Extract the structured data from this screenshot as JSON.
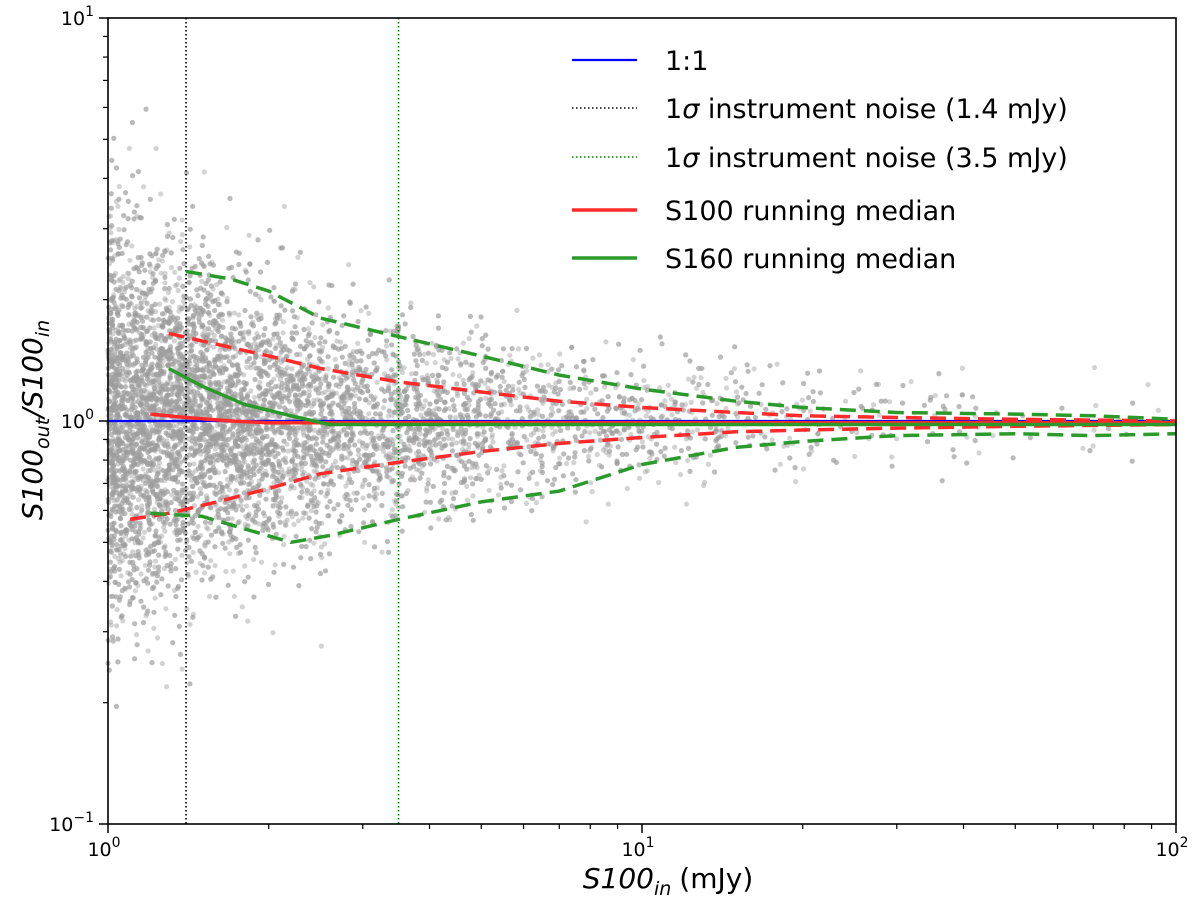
{
  "chart_data": {
    "type": "scatter",
    "x_axis": {
      "label_main": "S100",
      "label_sub": "in",
      "label_unit": "(mJy)",
      "scale": "log",
      "range": [
        1,
        100
      ],
      "tick_labels": [
        {
          "value": 1,
          "base": "10",
          "exp": "0"
        },
        {
          "value": 10,
          "base": "10",
          "exp": "1"
        },
        {
          "value": 100,
          "base": "10",
          "exp": "2"
        }
      ]
    },
    "y_axis": {
      "label_num": "S100",
      "label_num_sub": "out",
      "label_den": "S100",
      "label_den_sub": "in",
      "scale": "log",
      "range": [
        0.1,
        10
      ],
      "tick_labels": [
        {
          "value": 0.1,
          "base": "10",
          "exp": "−1"
        },
        {
          "value": 1,
          "base": "10",
          "exp": "0"
        },
        {
          "value": 10,
          "base": "10",
          "exp": "1"
        }
      ]
    },
    "scatter_color": "#9e9e9e",
    "legend": {
      "placement": "top-right",
      "entries": [
        {
          "label": "1:1",
          "color": "#0000ff",
          "style": "solid"
        },
        {
          "label_prefix": "1",
          "label_sigma": "σ",
          "label_rest": " instrument noise (1.4 mJy)",
          "color": "#000000",
          "style": "dotted"
        },
        {
          "label_prefix": "1",
          "label_sigma": "σ",
          "label_rest": " instrument noise (3.5 mJy)",
          "color": "#008000",
          "style": "dotted"
        },
        {
          "label": "S100 running median",
          "color": "#ff2a2a",
          "style": "solid"
        },
        {
          "label": "S160 running median",
          "color": "#2a9a2a",
          "style": "solid"
        }
      ]
    },
    "vlines": [
      {
        "x": 1.4,
        "color": "#000000"
      },
      {
        "x": 3.5,
        "color": "#008000"
      }
    ],
    "one_to_one": {
      "x": [
        1,
        100
      ],
      "y": [
        1,
        1
      ],
      "color": "#0000ff"
    },
    "series": [
      {
        "name": "S100 running median",
        "color": "#ff2a2a",
        "style": "solid",
        "x": [
          1.2,
          1.4,
          1.7,
          2.0,
          2.5,
          3.5,
          5,
          10,
          30,
          100
        ],
        "y": [
          1.04,
          1.02,
          1.0,
          0.99,
          0.99,
          0.99,
          0.99,
          0.99,
          0.99,
          0.99
        ]
      },
      {
        "name": "S100 upper",
        "color": "#ff2a2a",
        "style": "dashed",
        "x": [
          1.3,
          1.5,
          2.0,
          2.5,
          3.5,
          5,
          7,
          10,
          15,
          20,
          30,
          50,
          100
        ],
        "y": [
          1.65,
          1.58,
          1.45,
          1.35,
          1.25,
          1.18,
          1.12,
          1.08,
          1.05,
          1.03,
          1.02,
          1.01,
          1.0
        ]
      },
      {
        "name": "S100 lower",
        "color": "#ff2a2a",
        "style": "dashed",
        "x": [
          1.1,
          1.3,
          1.6,
          2.0,
          2.5,
          3.5,
          5,
          7,
          10,
          15,
          20,
          30,
          50,
          100
        ],
        "y": [
          0.57,
          0.59,
          0.63,
          0.68,
          0.74,
          0.79,
          0.84,
          0.88,
          0.91,
          0.94,
          0.95,
          0.96,
          0.97,
          0.98
        ]
      },
      {
        "name": "S160 running median",
        "color": "#2a9a2a",
        "style": "solid",
        "x": [
          1.3,
          1.5,
          1.8,
          2.2,
          2.6,
          3.5,
          5,
          10,
          30,
          100
        ],
        "y": [
          1.35,
          1.22,
          1.1,
          1.03,
          0.98,
          0.98,
          0.98,
          0.98,
          0.98,
          0.98
        ]
      },
      {
        "name": "S160 upper",
        "color": "#2a9a2a",
        "style": "dashed",
        "x": [
          1.4,
          1.7,
          2.0,
          2.5,
          3.5,
          5,
          7,
          10,
          15,
          20,
          30,
          50,
          70,
          100
        ],
        "y": [
          2.35,
          2.25,
          2.1,
          1.8,
          1.62,
          1.45,
          1.3,
          1.2,
          1.12,
          1.08,
          1.05,
          1.04,
          1.03,
          1.01
        ]
      },
      {
        "name": "S160 lower",
        "color": "#2a9a2a",
        "style": "dashed",
        "x": [
          1.2,
          1.5,
          1.8,
          2.2,
          2.6,
          3.5,
          5,
          7,
          10,
          15,
          20,
          30,
          50,
          70,
          100
        ],
        "y": [
          0.59,
          0.58,
          0.54,
          0.5,
          0.52,
          0.57,
          0.63,
          0.67,
          0.78,
          0.86,
          0.89,
          0.92,
          0.93,
          0.92,
          0.93
        ]
      }
    ]
  }
}
